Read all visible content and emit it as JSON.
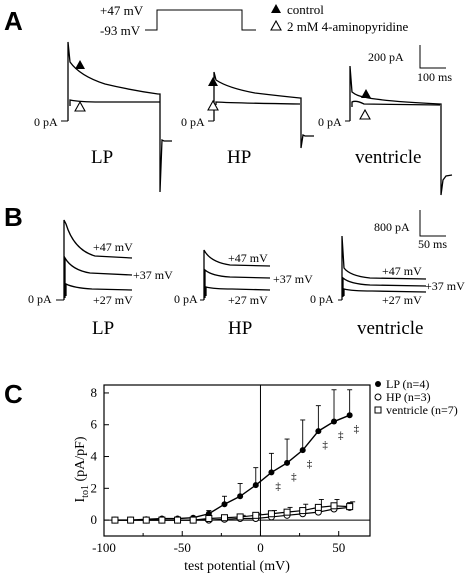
{
  "panels": {
    "A": {
      "letter": "A",
      "protocol": {
        "upper": "+47 mV",
        "lower": "-93 mV"
      },
      "legend": {
        "control": "control",
        "drug": "2 mM 4-aminopyridine"
      },
      "scalebar": {
        "current": "200 pA",
        "time": "100 ms"
      },
      "zero_label": "0 pA",
      "cells": [
        "LP",
        "HP",
        "ventricle"
      ]
    },
    "B": {
      "letter": "B",
      "scalebar": {
        "current": "800 pA",
        "time": "50 ms"
      },
      "zero_label": "0 pA",
      "voltages": [
        "+47 mV",
        "+37 mV",
        "+27 mV"
      ],
      "cells": [
        "LP",
        "HP",
        "ventricle"
      ]
    },
    "C": {
      "letter": "C"
    }
  },
  "chart_data": {
    "type": "line",
    "xlabel": "test potential (mV)",
    "ylabel_main": "I",
    "ylabel_sub": "to1",
    "ylabel_unit": "(pA/pF)",
    "xlim": [
      -100,
      70
    ],
    "ylim": [
      -1,
      8.5
    ],
    "xticks": [
      -100,
      -50,
      0,
      50
    ],
    "yticks": [
      0,
      2,
      4,
      6,
      8
    ],
    "significance_marker": "‡",
    "series": [
      {
        "name": "LP (n=4)",
        "marker": "filled-circle",
        "x": [
          -93,
          -83,
          -73,
          -63,
          -53,
          -43,
          -33,
          -23,
          -13,
          -3,
          7,
          17,
          27,
          37,
          47,
          57
        ],
        "y": [
          0,
          0,
          0.05,
          0.1,
          0.1,
          0.15,
          0.4,
          1.0,
          1.5,
          2.2,
          3.0,
          3.6,
          4.4,
          5.6,
          6.2,
          6.6
        ],
        "err": [
          0,
          0,
          0,
          0.1,
          0,
          0.05,
          0.2,
          0.5,
          0.8,
          1.1,
          1.2,
          1.5,
          1.9,
          1.6,
          2.0,
          1.6
        ],
        "significant_x": [
          7,
          17,
          27,
          37,
          47,
          57
        ]
      },
      {
        "name": "HP (n=3)",
        "marker": "open-circle",
        "x": [
          -93,
          -83,
          -73,
          -63,
          -53,
          -43,
          -33,
          -23,
          -13,
          -3,
          7,
          17,
          27,
          37,
          47,
          57
        ],
        "y": [
          0,
          0,
          0,
          0,
          0,
          0,
          0,
          0.05,
          0.1,
          0.1,
          0.2,
          0.3,
          0.4,
          0.5,
          0.7,
          0.8
        ],
        "err": [
          0,
          0,
          0,
          0,
          0,
          0,
          0,
          0,
          0,
          0.1,
          0.2,
          0.2,
          0.3,
          0.3,
          0.3,
          0.3
        ]
      },
      {
        "name": "ventricle (n=7)",
        "marker": "open-square",
        "x": [
          -93,
          -83,
          -73,
          -63,
          -53,
          -43,
          -33,
          -23,
          -13,
          -3,
          7,
          17,
          27,
          37,
          47,
          57
        ],
        "y": [
          0,
          0,
          0,
          0,
          0,
          0,
          0.1,
          0.15,
          0.2,
          0.3,
          0.4,
          0.5,
          0.6,
          0.8,
          0.9,
          0.85
        ],
        "err": [
          0,
          0,
          0,
          0,
          0,
          0,
          0,
          0,
          0.1,
          0.1,
          0.2,
          0.3,
          0.4,
          0.5,
          0.4,
          0.3
        ]
      }
    ]
  }
}
